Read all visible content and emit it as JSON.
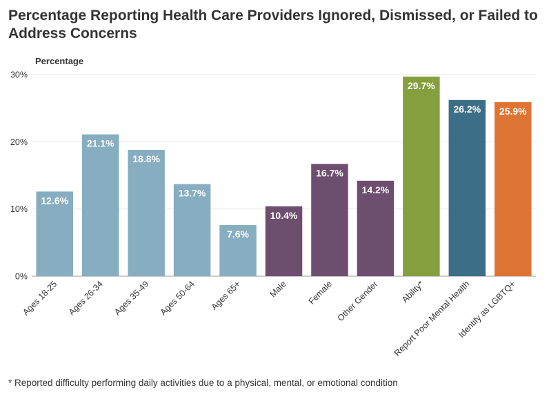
{
  "title": "Percentage Reporting Health Care Providers Ignored, Dismissed, or Failed to Address Concerns",
  "footnote": "* Reported difficulty performing daily activities due to a physical, mental, or emotional condition",
  "chart_data": {
    "type": "bar",
    "ylabel": "Percentage",
    "xlabel": "",
    "ylim": [
      0,
      30
    ],
    "yticks": [
      "0%",
      "10%",
      "20%",
      "30%"
    ],
    "grid": true,
    "categories": [
      "Ages 18-25",
      "Ages 26-34",
      "Ages 35-49",
      "Ages 50-64",
      "Ages 65+",
      "Male",
      "Female",
      "Other Gender",
      "Ability*",
      "Report Poor Mental Health",
      "Identify as LGBTQ+"
    ],
    "values": [
      12.6,
      21.1,
      18.8,
      13.7,
      7.6,
      10.4,
      16.7,
      14.2,
      29.7,
      26.2,
      25.9
    ],
    "value_labels": [
      "12.6%",
      "21.1%",
      "18.8%",
      "13.7%",
      "7.6%",
      "10.4%",
      "16.7%",
      "14.2%",
      "29.7%",
      "26.2%",
      "25.9%"
    ],
    "colors": [
      "#87adc0",
      "#87adc0",
      "#87adc0",
      "#87adc0",
      "#87adc0",
      "#6e4e6e",
      "#6e4e6e",
      "#6e4e6e",
      "#84a03e",
      "#3c6e88",
      "#de7434"
    ]
  }
}
